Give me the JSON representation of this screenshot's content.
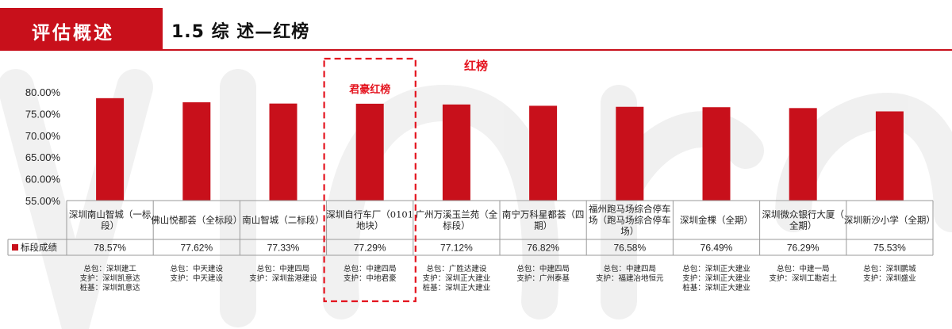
{
  "header": {
    "section_label": "评估概述",
    "title": "1.5 综  述—红榜"
  },
  "colors": {
    "accent": "#c8101b",
    "bar": "#c8101b",
    "highlight": "#e4141f",
    "watermark": "#eeeeee"
  },
  "chart_data": {
    "type": "bar",
    "title": "红榜",
    "highlight_label": "君豪红榜",
    "highlight_index": 3,
    "ylim": [
      55,
      80
    ],
    "yticks": [
      "55.00%",
      "60.00%",
      "65.00%",
      "70.00%",
      "75.00%",
      "80.00%"
    ],
    "ytick_values": [
      55,
      60,
      65,
      70,
      75,
      80
    ],
    "categories": [
      [
        "深圳南山智城（一标",
        "段）"
      ],
      [
        "佛山悦都荟（全标段）"
      ],
      [
        "南山智城（二标段）"
      ],
      [
        "深圳自行车厂（0101",
        "地块）"
      ],
      [
        "广州万溪玉兰苑（全",
        "标段）"
      ],
      [
        "南宁万科星都荟（四",
        "期）"
      ],
      [
        "福州跑马场综合停车",
        "场（跑马场综合停车",
        "场）"
      ],
      [
        "深圳金棵（全期）"
      ],
      [
        "深圳微众银行大厦（",
        "全期）"
      ],
      [
        "深圳新沙小学（全期）"
      ]
    ],
    "series": [
      {
        "name": "标段成绩",
        "values": [
          78.57,
          77.62,
          77.33,
          77.29,
          77.12,
          76.82,
          76.58,
          76.49,
          76.29,
          75.53
        ],
        "labels": [
          "78.57%",
          "77.62%",
          "77.33%",
          "77.29%",
          "77.12%",
          "76.82%",
          "76.58%",
          "76.49%",
          "76.29%",
          "75.53%"
        ]
      }
    ],
    "contractors": [
      [
        "总包：深圳建工",
        "支护：深圳凯意达",
        "桩基：深圳凯意达"
      ],
      [
        "总包：中天建设",
        "支护：中天建设"
      ],
      [
        "总包：中建四局",
        "支护：深圳盐港建设"
      ],
      [
        "总包：中建四局",
        "支护：中地君豪"
      ],
      [
        "总包：广胜达建设",
        "支护：深圳正大建业",
        "桩基：深圳正大建业"
      ],
      [
        "总包：中建四局",
        "支护：广州泰基"
      ],
      [
        "总包：中建四局",
        "支护：福建冶地恒元"
      ],
      [
        "总包：深圳正大建业",
        "支护：深圳正大建业",
        "桩基：深圳正大建业"
      ],
      [
        "总包：中建一局",
        "支护：深圳工勘岩土"
      ],
      [
        "总包：深圳鹏城",
        "支护：深圳盛业"
      ]
    ],
    "grid": false,
    "legend": "table-row"
  }
}
